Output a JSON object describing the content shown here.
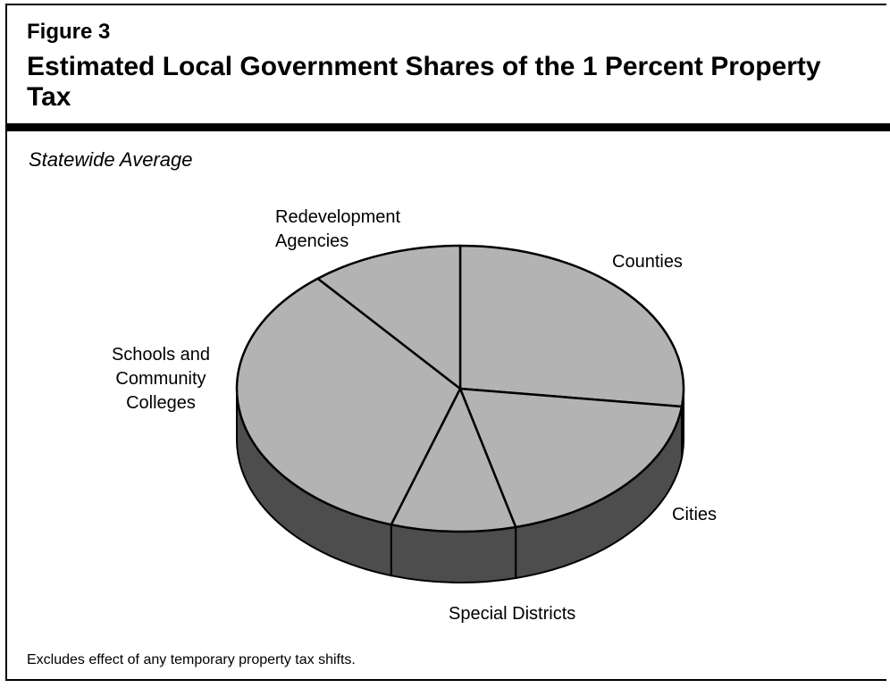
{
  "figure": {
    "label": "Figure 3",
    "title": "Estimated Local Government Shares of the 1 Percent Property Tax",
    "subtitle": "Statewide Average",
    "footnote": "Excludes effect of any temporary property tax shifts."
  },
  "chart_data": {
    "type": "pie",
    "style": "3d",
    "colors": {
      "top": "#b3b3b3",
      "side": "#4d4d4d",
      "outline": "#000000"
    },
    "slices": [
      {
        "label_lines": [
          "Counties"
        ],
        "value": 27
      },
      {
        "label_lines": [
          "Cities"
        ],
        "value": 19
      },
      {
        "label_lines": [
          "Special Districts"
        ],
        "value": 9
      },
      {
        "label_lines": [
          "Schools and",
          "Community",
          "Colleges"
        ],
        "value": 34
      },
      {
        "label_lines": [
          "Redevelopment",
          "Agencies"
        ],
        "value": 11
      }
    ]
  }
}
